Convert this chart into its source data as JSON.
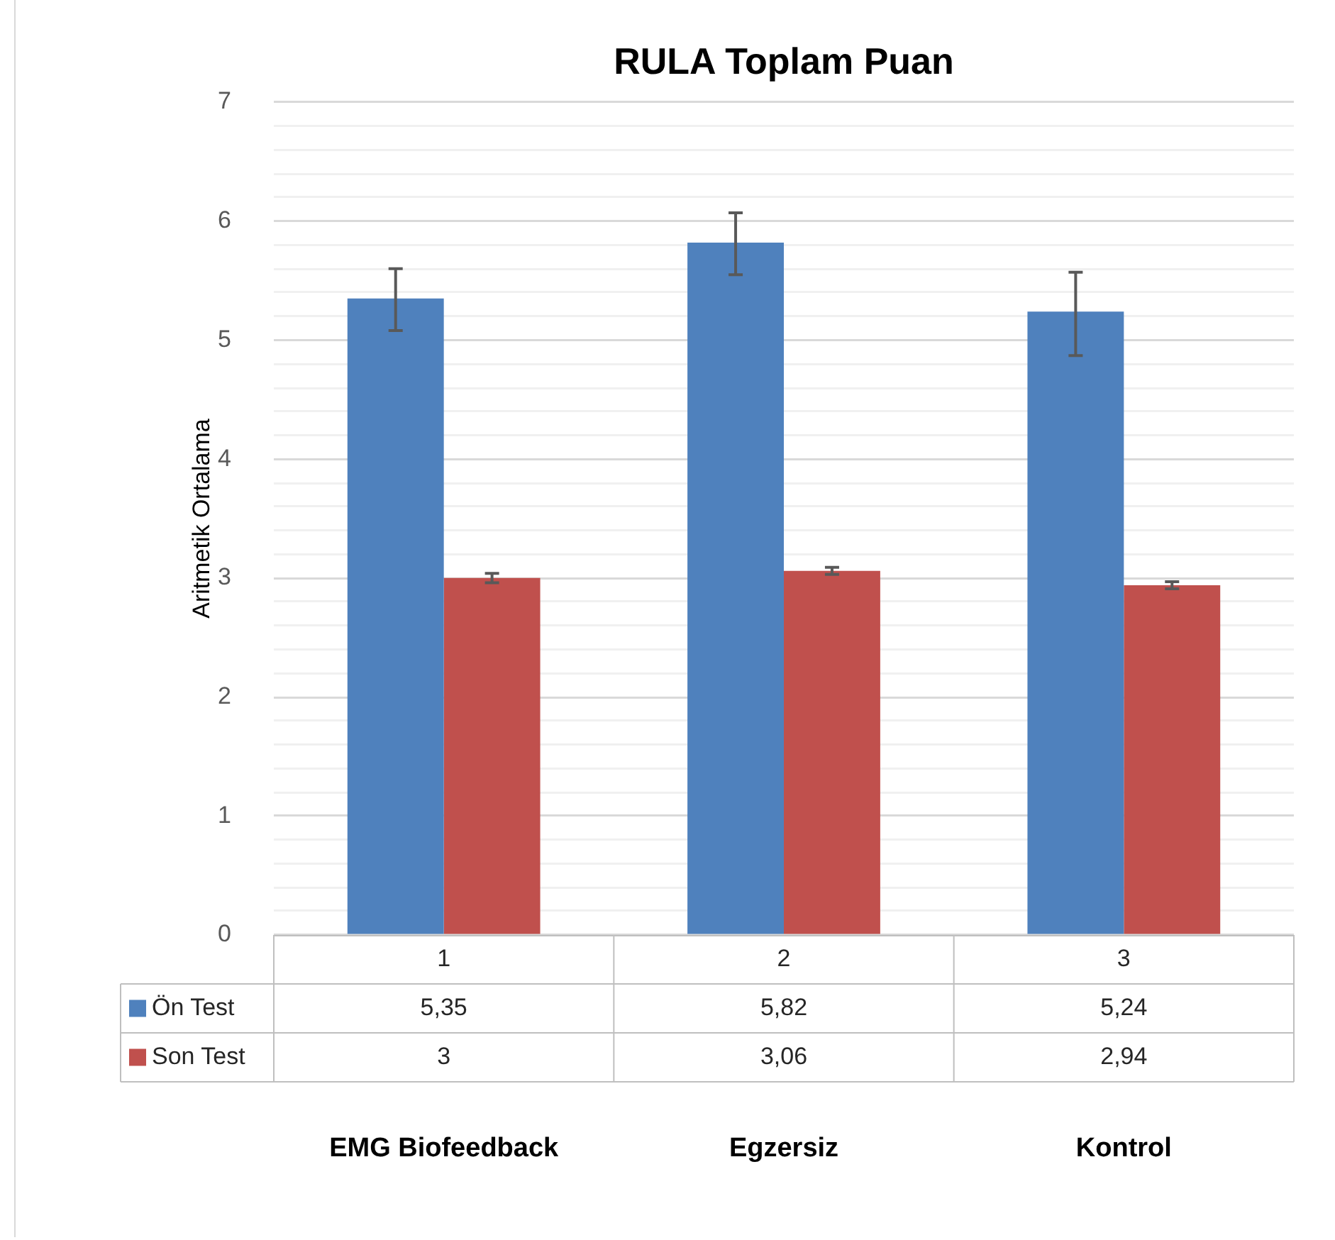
{
  "chart_data": {
    "type": "bar",
    "title": "RULA Toplam Puan",
    "ylabel": "Aritmetik Ortalama",
    "categories": [
      "1",
      "2",
      "3"
    ],
    "series": [
      {
        "name": "Ön Test",
        "color": "#4f81bd",
        "values": [
          5.35,
          5.82,
          5.24
        ],
        "value_labels": [
          "5,35",
          "5,82",
          "5,24"
        ],
        "errors": [
          [
            5.08,
            5.6
          ],
          [
            5.55,
            6.07
          ],
          [
            4.87,
            5.57
          ]
        ]
      },
      {
        "name": "Son Test",
        "color": "#c0504d",
        "values": [
          3,
          3.06,
          2.94
        ],
        "value_labels": [
          "3",
          "3,06",
          "2,94"
        ],
        "errors": [
          [
            2.96,
            3.04
          ],
          [
            3.03,
            3.09
          ],
          [
            2.91,
            2.97
          ]
        ]
      }
    ],
    "ylim": [
      0,
      7
    ],
    "yticks": [
      0,
      {
        "value": 0.2,
        "label": null
      },
      {
        "value": 0.4,
        "label": null
      },
      {
        "value": 0.6,
        "label": null
      },
      {
        "value": 0.8,
        "label": null
      },
      1,
      {
        "value": 1.2,
        "label": null
      },
      {
        "value": 1.4,
        "label": null
      },
      {
        "value": 1.6,
        "label": null
      },
      {
        "value": 1.8,
        "label": null
      },
      2,
      {
        "value": 2.2,
        "label": null
      },
      {
        "value": 2.4,
        "label": null
      },
      {
        "value": 2.6,
        "label": null
      },
      {
        "value": 2.8,
        "label": null
      },
      3,
      {
        "value": 3.2,
        "label": null
      },
      {
        "value": 3.4,
        "label": null
      },
      {
        "value": 3.6,
        "label": null
      },
      {
        "value": 3.8,
        "label": null
      },
      4,
      {
        "value": 4.2,
        "label": null
      },
      {
        "value": 4.4,
        "label": null
      },
      {
        "value": 4.6,
        "label": null
      },
      {
        "value": 4.8,
        "label": null
      },
      5,
      {
        "value": 5.2,
        "label": null
      },
      {
        "value": 5.4,
        "label": null
      },
      {
        "value": 5.6,
        "label": null
      },
      {
        "value": 5.8,
        "label": null
      },
      6,
      {
        "value": 6.2,
        "label": null
      },
      {
        "value": 6.4,
        "label": null
      },
      {
        "value": 6.6,
        "label": null
      },
      {
        "value": 6.8,
        "label": null
      },
      7
    ],
    "grid": "y",
    "legend": "bottom left",
    "annotations": [
      "EMG Biofeedback",
      "Egzersiz",
      "Kontrol"
    ]
  }
}
